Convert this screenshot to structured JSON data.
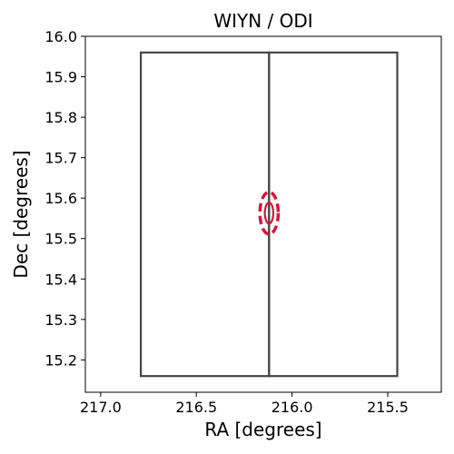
{
  "chart_data": {
    "type": "footprint",
    "title": "WIYN / ODI",
    "xlabel": "RA [degrees]",
    "ylabel": "Dec [degrees]",
    "xlim": [
      217.08,
      215.22
    ],
    "ylim": [
      15.12,
      16.0
    ],
    "x_inverted": true,
    "x_ticks": [
      217.0,
      216.5,
      216.0,
      215.5
    ],
    "x_tick_labels": [
      "217.0",
      "216.5",
      "216.0",
      "215.5"
    ],
    "y_ticks": [
      15.2,
      15.3,
      15.4,
      15.5,
      15.6,
      15.7,
      15.8,
      15.9,
      16.0
    ],
    "y_tick_labels": [
      "15.2",
      "15.3",
      "15.4",
      "15.5",
      "15.6",
      "15.7",
      "15.8",
      "15.9",
      "16.0"
    ],
    "grid": false,
    "legend": "none",
    "footprints": [
      {
        "ra_min": 216.12,
        "ra_max": 216.79,
        "dec_min": 15.16,
        "dec_max": 15.96
      },
      {
        "ra_min": 215.45,
        "ra_max": 216.12,
        "dec_min": 15.16,
        "dec_max": 15.96
      }
    ],
    "target": {
      "ra": 216.12,
      "dec": 15.563,
      "ellipses": [
        {
          "ra_halfwidth": 0.048,
          "dec_halfheight": 0.052,
          "style": "dashed"
        },
        {
          "ra_halfwidth": 0.022,
          "dec_halfheight": 0.026,
          "style": "solid"
        }
      ]
    },
    "colors": {
      "footprint": "#444444",
      "target": "#dc143c"
    }
  }
}
